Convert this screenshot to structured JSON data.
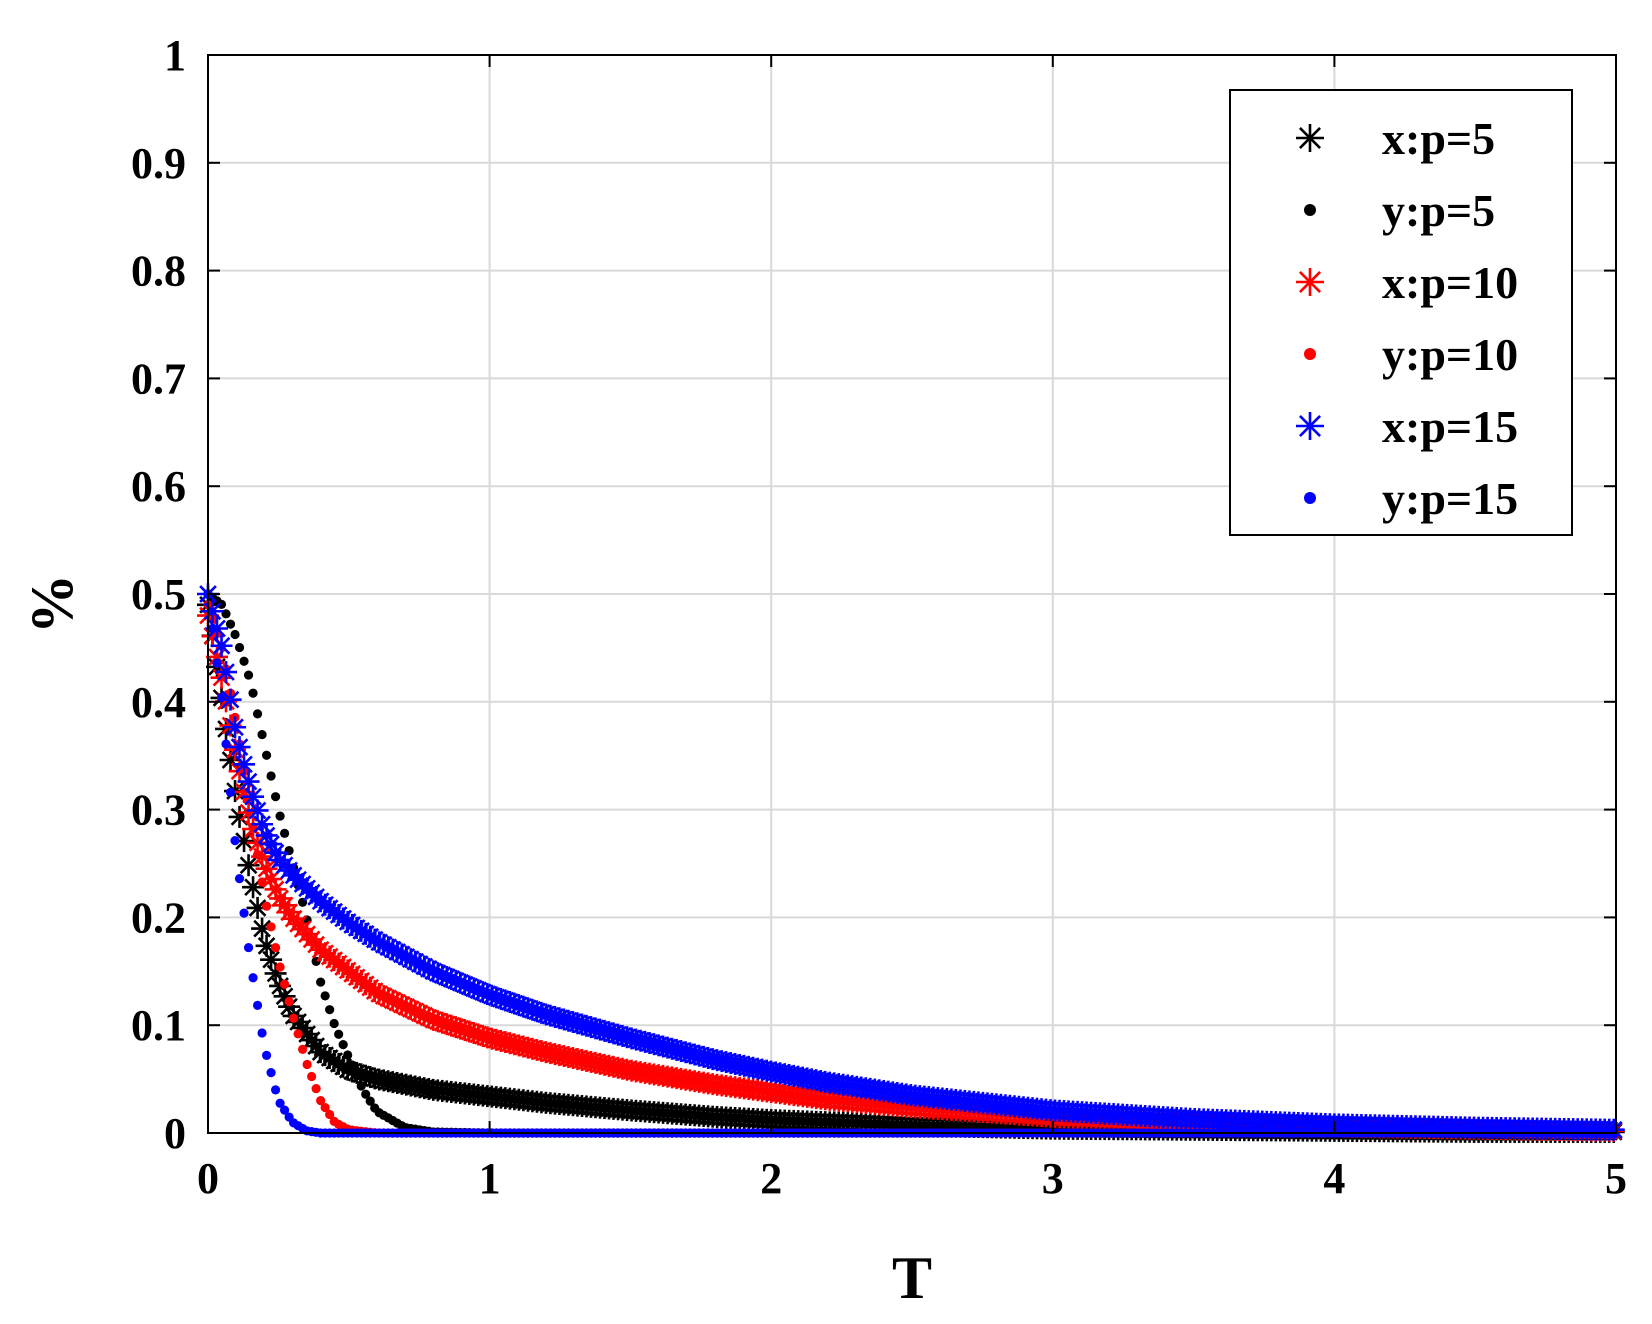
{
  "chart_data": {
    "type": "scatter",
    "xlabel": "T",
    "ylabel": "%",
    "xlim": [
      0,
      5
    ],
    "ylim": [
      0,
      1
    ],
    "xticks": [
      "0",
      "1",
      "2",
      "3",
      "4",
      "5"
    ],
    "yticks": [
      "0",
      "0.1",
      "0.2",
      "0.3",
      "0.4",
      "0.5",
      "0.6",
      "0.7",
      "0.8",
      "0.9",
      "1"
    ],
    "grid": true,
    "legend_position": "top-right",
    "series": [
      {
        "name": "x:p=5",
        "marker": "asterisk",
        "color": "#000000",
        "x": [
          0,
          0.05,
          0.1,
          0.15,
          0.2,
          0.25,
          0.3,
          0.4,
          0.5,
          0.6,
          0.8,
          1.0,
          1.2,
          1.5,
          1.8,
          2.0,
          2.2,
          2.5,
          3.0,
          3.5,
          4.0,
          4.5,
          5.0
        ],
        "values": [
          0.49,
          0.4,
          0.31,
          0.24,
          0.18,
          0.14,
          0.11,
          0.075,
          0.058,
          0.05,
          0.04,
          0.034,
          0.028,
          0.021,
          0.015,
          0.012,
          0.01,
          0.007,
          0.004,
          0.003,
          0.002,
          0.001,
          0.001
        ]
      },
      {
        "name": "y:p=5",
        "marker": "dot",
        "color": "#000000",
        "x": [
          0,
          0.05,
          0.1,
          0.15,
          0.2,
          0.25,
          0.3,
          0.35,
          0.4,
          0.45,
          0.5,
          0.55,
          0.6,
          0.7,
          0.8,
          1.0,
          1.5,
          2.0,
          3.0,
          4.0,
          5.0
        ],
        "values": [
          0.5,
          0.49,
          0.46,
          0.42,
          0.36,
          0.3,
          0.25,
          0.2,
          0.14,
          0.1,
          0.07,
          0.04,
          0.02,
          0.005,
          0.001,
          0,
          0,
          0,
          0,
          0,
          0
        ]
      },
      {
        "name": "x:p=10",
        "marker": "asterisk",
        "color": "#ff0000",
        "x": [
          0,
          0.05,
          0.1,
          0.15,
          0.2,
          0.25,
          0.3,
          0.4,
          0.5,
          0.6,
          0.8,
          1.0,
          1.2,
          1.5,
          1.8,
          2.0,
          2.2,
          2.5,
          3.0,
          3.5,
          4.0,
          4.5,
          5.0
        ],
        "values": [
          0.48,
          0.42,
          0.35,
          0.29,
          0.25,
          0.22,
          0.2,
          0.17,
          0.15,
          0.13,
          0.105,
          0.088,
          0.075,
          0.058,
          0.045,
          0.038,
          0.031,
          0.024,
          0.015,
          0.01,
          0.006,
          0.004,
          0.002
        ]
      },
      {
        "name": "y:p=10",
        "marker": "dot",
        "color": "#ff0000",
        "x": [
          0,
          0.05,
          0.1,
          0.15,
          0.2,
          0.25,
          0.3,
          0.35,
          0.4,
          0.45,
          0.5,
          0.6,
          0.8,
          1.0,
          1.5,
          2.0,
          3.0,
          4.0,
          5.0
        ],
        "values": [
          0.49,
          0.45,
          0.38,
          0.3,
          0.22,
          0.16,
          0.11,
          0.065,
          0.03,
          0.01,
          0.003,
          0,
          0,
          0,
          0,
          0,
          0,
          0,
          0
        ]
      },
      {
        "name": "x:p=15",
        "marker": "asterisk",
        "color": "#0000ff",
        "x": [
          0,
          0.05,
          0.1,
          0.15,
          0.2,
          0.25,
          0.3,
          0.4,
          0.5,
          0.6,
          0.8,
          1.0,
          1.2,
          1.5,
          1.8,
          2.0,
          2.2,
          2.5,
          3.0,
          3.5,
          4.0,
          4.5,
          5.0
        ],
        "values": [
          0.5,
          0.45,
          0.37,
          0.32,
          0.28,
          0.255,
          0.24,
          0.215,
          0.195,
          0.178,
          0.15,
          0.128,
          0.11,
          0.088,
          0.068,
          0.057,
          0.047,
          0.035,
          0.021,
          0.013,
          0.008,
          0.005,
          0.003
        ]
      },
      {
        "name": "y:p=15",
        "marker": "dot",
        "color": "#0000ff",
        "x": [
          0,
          0.05,
          0.1,
          0.15,
          0.2,
          0.25,
          0.3,
          0.35,
          0.4,
          0.45,
          0.5,
          0.6,
          0.8,
          1.0,
          1.5,
          2.0,
          3.0,
          4.0,
          5.0
        ],
        "values": [
          0.5,
          0.4,
          0.26,
          0.16,
          0.08,
          0.03,
          0.01,
          0.002,
          0,
          0,
          0,
          0,
          0,
          0,
          0,
          0,
          0,
          0,
          0
        ]
      }
    ]
  }
}
